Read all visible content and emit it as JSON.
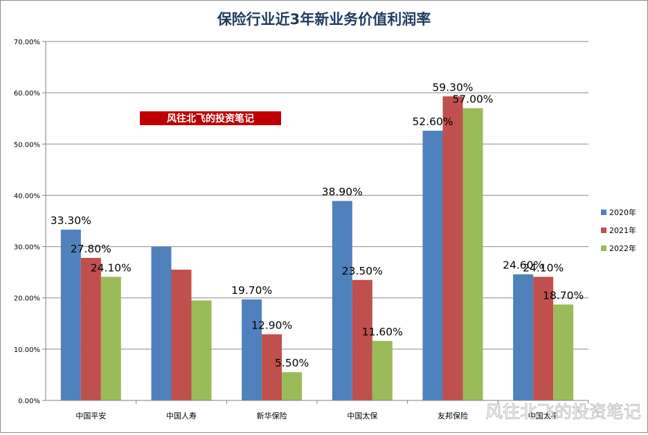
{
  "chart_data": {
    "type": "bar",
    "title": "保险行业近3年新业务价值利润率",
    "categories": [
      "中国平安",
      "中国人寿",
      "新华保险",
      "中国太保",
      "友邦保险",
      "中国太平"
    ],
    "series": [
      {
        "name": "2020年",
        "color": "#4f81bd",
        "values": [
          33.3,
          30.0,
          19.7,
          38.9,
          52.6,
          24.6
        ]
      },
      {
        "name": "2021年",
        "color": "#c0504d",
        "values": [
          27.8,
          25.5,
          12.9,
          23.5,
          59.3,
          24.1
        ]
      },
      {
        "name": "2022年",
        "color": "#9bbb59",
        "values": [
          24.1,
          19.5,
          5.5,
          11.6,
          57.0,
          18.7
        ]
      }
    ],
    "data_labels": [
      [
        "33.30%",
        "",
        "19.70%",
        "38.90%",
        "52.60%",
        "24.60%"
      ],
      [
        "27.80%",
        "",
        "12.90%",
        "23.50%",
        "59.30%",
        "24.10%"
      ],
      [
        "24.10%",
        "",
        "5.50%",
        "11.60%",
        "57.00%",
        "18.70%"
      ]
    ],
    "y_ticks": [
      "0.00%",
      "10.00%",
      "20.00%",
      "30.00%",
      "40.00%",
      "50.00%",
      "60.00%",
      "70.00%"
    ],
    "ylim": [
      0,
      70
    ],
    "grid": true,
    "legend": "right",
    "banner": {
      "text": "风往北飞的投资笔记",
      "color": "#c00000"
    },
    "watermark": "风往北飞的投资笔记"
  }
}
